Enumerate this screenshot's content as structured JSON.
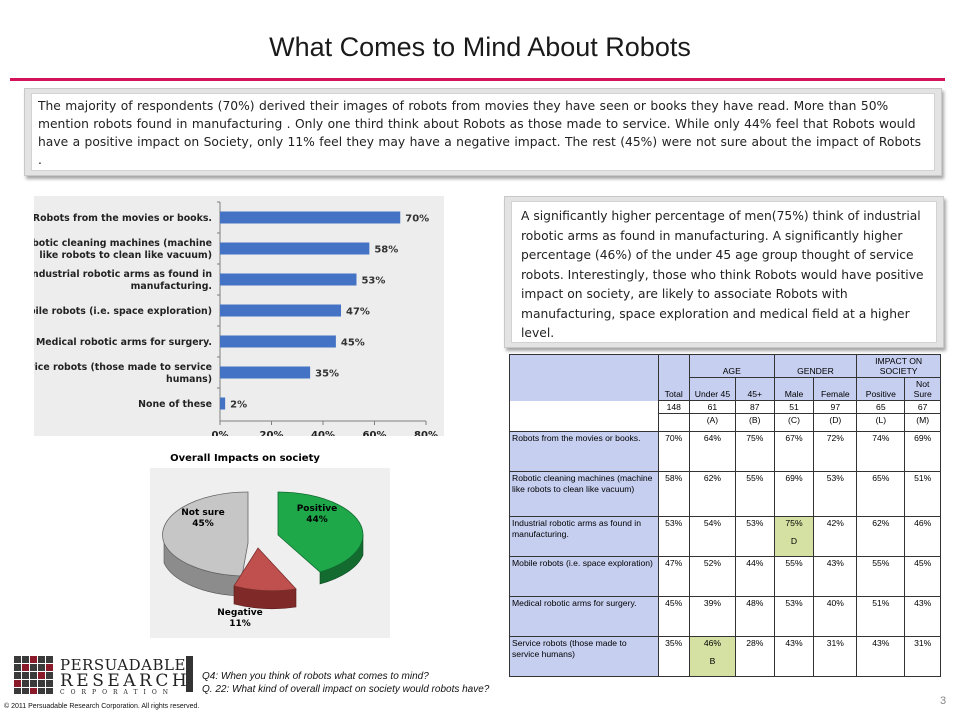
{
  "title": "What Comes to Mind About Robots",
  "summary": "The majority of respondents (70%) derived their images of robots from movies they have seen or books they have read. More than 50% mention robots found in manufacturing . Only one third think about Robots as those made to service. While only 44% feel that Robots would have a positive impact on Society, only 11% feel they may have a negative impact. The rest (45%) were not sure about the impact of Robots .",
  "insight": "A significantly higher percentage of men(75%) think of industrial robotic arms as found in manufacturing. A significantly higher percentage (46%) of the under 45 age group thought of service robots. Interestingly, those who think Robots would have positive impact on society, are likely to associate Robots with manufacturing, space exploration and medical field at a higher level.",
  "chart_data": [
    {
      "type": "bar",
      "orientation": "horizontal",
      "categories": [
        "Robots from the movies or books.",
        "Robotic cleaning machines (machine like robots to clean like vacuum)",
        "Industrial robotic arms as found in manufacturing.",
        "Mobile robots (i.e. space exploration)",
        "Medical robotic arms for surgery.",
        "Service robots (those made to service humans)",
        "None of these"
      ],
      "category_lines": [
        [
          "Robots from the movies or books."
        ],
        [
          "Robotic cleaning machines (machine",
          "like robots to clean like vacuum)"
        ],
        [
          "Industrial robotic arms as found in",
          "manufacturing."
        ],
        [
          "Mobile robots (i.e. space exploration)"
        ],
        [
          "Medical robotic arms for surgery."
        ],
        [
          "Service robots (those made to service",
          "humans)"
        ],
        [
          "None of these"
        ]
      ],
      "values": [
        70,
        58,
        53,
        47,
        45,
        35,
        2
      ],
      "data_labels": [
        "70%",
        "58%",
        "53%",
        "47%",
        "45%",
        "35%",
        "2%"
      ],
      "xlim": [
        0,
        80
      ],
      "ticks": [
        "0%",
        "20%",
        "40%",
        "60%",
        "80%"
      ],
      "bar_color": "#4472c4"
    },
    {
      "type": "pie",
      "title": "Overall Impacts on society",
      "slices": [
        {
          "label": "Positive",
          "value": 44,
          "value_label": "44%",
          "color": "#1ea84a"
        },
        {
          "label": "Negative",
          "value": 11,
          "value_label": "11%",
          "color": "#c0504d"
        },
        {
          "label": "Not sure",
          "value": 45,
          "value_label": "45%",
          "color": "#bfbfbf"
        }
      ]
    }
  ],
  "table": {
    "group_headers": [
      "AGE",
      "GENDER",
      "IMPACT ON SOCIETY"
    ],
    "col_headers": [
      "Total",
      "Under 45",
      "45+",
      "Male",
      "Female",
      "Positive",
      "Not Sure"
    ],
    "bases": [
      "148",
      "61",
      "87",
      "51",
      "97",
      "65",
      "67"
    ],
    "col_letters": [
      "",
      "(A)",
      "(B)",
      "(C)",
      "(D)",
      "(L)",
      "(M)"
    ],
    "rows": [
      {
        "label": "Robots from the movies or books.",
        "cells": [
          "70%",
          "64%",
          "75%",
          "67%",
          "72%",
          "74%",
          "69%"
        ],
        "sig": [
          "",
          "",
          "",
          "",
          "",
          "",
          ""
        ]
      },
      {
        "label": "Robotic cleaning machines (machine like robots to clean like vacuum)",
        "cells": [
          "58%",
          "62%",
          "55%",
          "69%",
          "53%",
          "65%",
          "51%"
        ],
        "sig": [
          "",
          "",
          "",
          "",
          "",
          "",
          ""
        ]
      },
      {
        "label": "Industrial robotic arms as found in manufacturing.",
        "cells": [
          "53%",
          "54%",
          "53%",
          "75%",
          "42%",
          "62%",
          "46%"
        ],
        "sig": [
          "",
          "",
          "",
          "D",
          "",
          "",
          ""
        ]
      },
      {
        "label": "Mobile robots (i.e. space exploration)",
        "cells": [
          "47%",
          "52%",
          "44%",
          "55%",
          "43%",
          "55%",
          "45%"
        ],
        "sig": [
          "",
          "",
          "",
          "",
          "",
          "",
          ""
        ]
      },
      {
        "label": "Medical robotic arms for surgery.",
        "cells": [
          "45%",
          "39%",
          "48%",
          "53%",
          "40%",
          "51%",
          "43%"
        ],
        "sig": [
          "",
          "",
          "",
          "",
          "",
          "",
          ""
        ]
      },
      {
        "label": "Service robots (those made to service humans)",
        "cells": [
          "35%",
          "46%",
          "28%",
          "43%",
          "31%",
          "43%",
          "31%"
        ],
        "sig": [
          "",
          "B",
          "",
          "",
          "",
          "",
          ""
        ]
      }
    ],
    "highlight_color": "#d5e0a3",
    "label_bg": "#c6cff0"
  },
  "logo": {
    "line1": "PERSUADABLE",
    "registered": "®",
    "line2": "RESEARCH",
    "line3": "CORPORATION"
  },
  "notes": [
    "Q4:  When you think of robots what comes to mind?",
    "Q. 22:  What kind of overall impact on society would robots have?"
  ],
  "copyright": "© 2011  Persuadable  Research Corporation.   All rights reserved.",
  "page_number": "3"
}
